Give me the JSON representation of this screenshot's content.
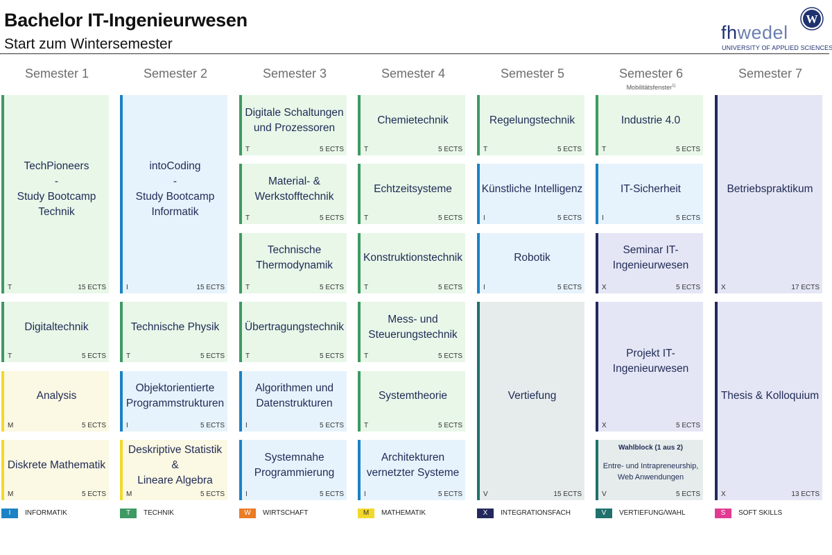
{
  "header": {
    "title": "Bachelor IT-Ingenieurwesen",
    "subtitle": "Start zum Wintersemester"
  },
  "logo": {
    "word_dark": "fh",
    "word_light": "wedel",
    "subline": "UNIVERSITY OF APPLIED SCIENCES",
    "seal_letter": "W",
    "icon": "fh-wedel-seal-logo"
  },
  "semesters": [
    {
      "label": "Semester 1"
    },
    {
      "label": "Semester 2"
    },
    {
      "label": "Semester 3"
    },
    {
      "label": "Semester 4"
    },
    {
      "label": "Semester 5"
    },
    {
      "label": "Semester 6",
      "note": "Mobilitätsfenster",
      "note_sup": "1)"
    },
    {
      "label": "Semester 7"
    }
  ],
  "category_styles": {
    "T": {
      "bar": "#3d9a63",
      "bg": "#e8f7e8"
    },
    "I": {
      "bar": "#1b82c4",
      "bg": "#e6f3fc"
    },
    "M": {
      "bar": "#f2d82c",
      "bg": "#fbf8e3"
    },
    "X": {
      "bar": "#23285d",
      "bg": "#e5e6f5"
    },
    "V": {
      "bar": "#20706c",
      "bg": "#e6ecec"
    },
    "W": {
      "bar": "#ea7c26",
      "bg": "#fdf0e3"
    },
    "S": {
      "bar": "#e13a92",
      "bg": "#fce7f2"
    }
  },
  "modules": [
    {
      "sem": 1,
      "row": 1,
      "span": 3,
      "name": "TechPioneers\n-\nStudy Bootcamp\nTechnik",
      "type": "T",
      "ects": "15 ECTS"
    },
    {
      "sem": 1,
      "row": 4,
      "span": 1,
      "name": "Digitaltechnik",
      "type": "T",
      "ects": "5 ECTS"
    },
    {
      "sem": 1,
      "row": 5,
      "span": 1,
      "name": "Analysis",
      "type": "M",
      "ects": "5 ECTS"
    },
    {
      "sem": 1,
      "row": 6,
      "span": 1,
      "name": "Diskrete Mathematik",
      "type": "M",
      "ects": "5 ECTS"
    },
    {
      "sem": 2,
      "row": 1,
      "span": 3,
      "name": "intoCoding\n-\nStudy Bootcamp\nInformatik",
      "type": "I",
      "ects": "15 ECTS"
    },
    {
      "sem": 2,
      "row": 4,
      "span": 1,
      "name": "Technische Physik",
      "type": "T",
      "ects": "5 ECTS"
    },
    {
      "sem": 2,
      "row": 5,
      "span": 1,
      "name": "Objektorientierte\nProgrammstrukturen",
      "type": "I",
      "ects": "5 ECTS"
    },
    {
      "sem": 2,
      "row": 6,
      "span": 1,
      "name": "Deskriptive Statistik &\nLineare Algebra",
      "type": "M",
      "ects": "5 ECTS"
    },
    {
      "sem": 3,
      "row": 1,
      "span": 1,
      "name": "Digitale Schaltungen\nund Prozessoren",
      "type": "T",
      "ects": "5 ECTS"
    },
    {
      "sem": 3,
      "row": 2,
      "span": 1,
      "name": "Material- &\nWerkstofftechnik",
      "type": "T",
      "ects": "5 ECTS"
    },
    {
      "sem": 3,
      "row": 3,
      "span": 1,
      "name": "Technische\nThermodynamik",
      "type": "T",
      "ects": "5 ECTS"
    },
    {
      "sem": 3,
      "row": 4,
      "span": 1,
      "name": "Übertragungstechnik",
      "type": "T",
      "ects": "5 ECTS"
    },
    {
      "sem": 3,
      "row": 5,
      "span": 1,
      "name": "Algorithmen und\nDatenstrukturen",
      "type": "I",
      "ects": "5 ECTS"
    },
    {
      "sem": 3,
      "row": 6,
      "span": 1,
      "name": "Systemnahe\nProgrammierung",
      "type": "I",
      "ects": "5 ECTS"
    },
    {
      "sem": 4,
      "row": 1,
      "span": 1,
      "name": "Chemietechnik",
      "type": "T",
      "ects": "5 ECTS"
    },
    {
      "sem": 4,
      "row": 2,
      "span": 1,
      "name": "Echtzeitsysteme",
      "type": "T",
      "ects": "5 ECTS"
    },
    {
      "sem": 4,
      "row": 3,
      "span": 1,
      "name": "Konstruktionstechnik",
      "type": "T",
      "ects": "5 ECTS"
    },
    {
      "sem": 4,
      "row": 4,
      "span": 1,
      "name": "Mess- und\nSteuerungstechnik",
      "type": "T",
      "ects": "5 ECTS"
    },
    {
      "sem": 4,
      "row": 5,
      "span": 1,
      "name": "Systemtheorie",
      "type": "T",
      "ects": "5 ECTS"
    },
    {
      "sem": 4,
      "row": 6,
      "span": 1,
      "name": "Architekturen\nvernetzter Systeme",
      "type": "I",
      "ects": "5 ECTS"
    },
    {
      "sem": 5,
      "row": 1,
      "span": 1,
      "name": "Regelungstechnik",
      "type": "T",
      "ects": "5 ECTS"
    },
    {
      "sem": 5,
      "row": 2,
      "span": 1,
      "name": "Künstliche Intelligenz",
      "type": "I",
      "ects": "5 ECTS"
    },
    {
      "sem": 5,
      "row": 3,
      "span": 1,
      "name": "Robotik",
      "type": "I",
      "ects": "5 ECTS"
    },
    {
      "sem": 5,
      "row": 4,
      "span": 3,
      "name": "Vertiefung",
      "type": "V",
      "ects": "15 ECTS"
    },
    {
      "sem": 6,
      "row": 1,
      "span": 1,
      "name": "Industrie 4.0",
      "type": "T",
      "ects": "5 ECTS"
    },
    {
      "sem": 6,
      "row": 2,
      "span": 1,
      "name": "IT-Sicherheit",
      "type": "I",
      "ects": "5 ECTS"
    },
    {
      "sem": 6,
      "row": 3,
      "span": 1,
      "name": "Seminar IT-\nIngenieurwesen",
      "type": "X",
      "ects": "5 ECTS"
    },
    {
      "sem": 6,
      "row": 4,
      "span": 2,
      "name": "Projekt IT-\nIngenieurwesen",
      "type": "X",
      "ects": "5 ECTS"
    },
    {
      "sem": 6,
      "row": 6,
      "span": 1,
      "name": "",
      "wahl_title": "Wahlblock (1 aus 2)",
      "wahl_text": "Entre- und Intrapreneurship,\nWeb Anwendungen",
      "type": "V",
      "ects": "5 ECTS"
    },
    {
      "sem": 7,
      "row": 1,
      "span": 3,
      "name": "Betriebspraktikum",
      "type": "X",
      "ects": "17 ECTS"
    },
    {
      "sem": 7,
      "row": 4,
      "span": 3,
      "name": "Thesis & Kolloquium",
      "type": "X",
      "ects": "13 ECTS"
    }
  ],
  "legend": [
    {
      "code": "I",
      "label": "INFORMATIK",
      "color": "#1b82c4"
    },
    {
      "code": "T",
      "label": "TECHNIK",
      "color": "#3d9a63"
    },
    {
      "code": "W",
      "label": "WIRTSCHAFT",
      "color": "#ea7c26"
    },
    {
      "code": "M",
      "label": "MATHEMATIK",
      "color": "#f2d82c"
    },
    {
      "code": "X",
      "label": "INTEGRATIONSFACH",
      "color": "#23285d"
    },
    {
      "code": "V",
      "label": "VERTIEFUNG/WAHL",
      "color": "#20706c"
    },
    {
      "code": "S",
      "label": "SOFT SKILLS",
      "color": "#e13a92"
    }
  ]
}
